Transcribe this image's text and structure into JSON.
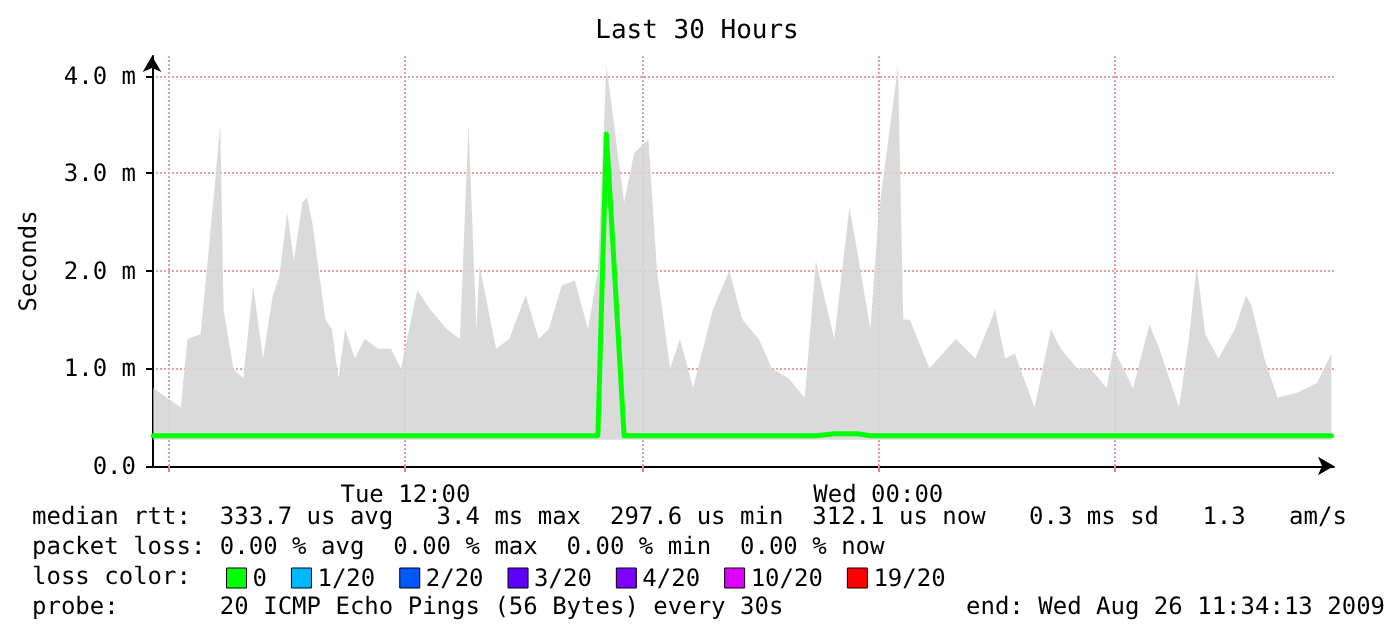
{
  "chart_data": {
    "type": "line",
    "title": "Last 30 Hours",
    "ylabel": "Seconds",
    "xlim": [
      "2009-08-25T05:34",
      "2009-08-26T11:34"
    ],
    "xticks": [
      {
        "value": "2009-08-25T06:00",
        "label": null
      },
      {
        "value": "2009-08-25T12:00",
        "label": "Tue 12:00"
      },
      {
        "value": "2009-08-25T18:00",
        "label": null
      },
      {
        "value": "2009-08-26T00:00",
        "label": "Wed 00:00"
      },
      {
        "value": "2009-08-26T06:00",
        "label": null
      }
    ],
    "ylim": [
      0,
      4.2
    ],
    "yticks": [
      {
        "value": 0,
        "label": "0.0"
      },
      {
        "value": 1,
        "label": "1.0 m"
      },
      {
        "value": 2,
        "label": "2.0 m"
      },
      {
        "value": 3,
        "label": "3.0 m"
      },
      {
        "value": 4,
        "label": "4.0 m"
      }
    ],
    "x": [
      "2009-08-25T05:36",
      "2009-08-25T06:18",
      "2009-08-25T06:28",
      "2009-08-25T06:48",
      "2009-08-25T07:03",
      "2009-08-25T07:18",
      "2009-08-25T07:23",
      "2009-08-25T07:38",
      "2009-08-25T07:53",
      "2009-08-25T08:08",
      "2009-08-25T08:23",
      "2009-08-25T08:38",
      "2009-08-25T08:48",
      "2009-08-25T09:00",
      "2009-08-25T09:10",
      "2009-08-25T09:23",
      "2009-08-25T09:30",
      "2009-08-25T09:38",
      "2009-08-25T09:58",
      "2009-08-25T10:08",
      "2009-08-25T10:18",
      "2009-08-25T10:28",
      "2009-08-25T10:43",
      "2009-08-25T10:58",
      "2009-08-25T11:18",
      "2009-08-25T11:38",
      "2009-08-25T11:53",
      "2009-08-25T12:18",
      "2009-08-25T12:38",
      "2009-08-25T13:03",
      "2009-08-25T13:23",
      "2009-08-25T13:36",
      "2009-08-25T13:48",
      "2009-08-25T13:53",
      "2009-08-25T14:18",
      "2009-08-25T14:38",
      "2009-08-25T15:03",
      "2009-08-25T15:23",
      "2009-08-25T15:38",
      "2009-08-25T15:58",
      "2009-08-25T16:18",
      "2009-08-25T16:38",
      "2009-08-25T16:53",
      "2009-08-25T17:06",
      "2009-08-25T17:33",
      "2009-08-25T17:48",
      "2009-08-25T18:10",
      "2009-08-25T18:23",
      "2009-08-25T18:43",
      "2009-08-25T18:58",
      "2009-08-25T19:18",
      "2009-08-25T19:48",
      "2009-08-25T20:13",
      "2009-08-25T20:33",
      "2009-08-25T20:58",
      "2009-08-25T21:18",
      "2009-08-25T21:43",
      "2009-08-25T22:08",
      "2009-08-25T22:25",
      "2009-08-25T22:53",
      "2009-08-25T23:16",
      "2009-08-25T23:28",
      "2009-08-25T23:48",
      "2009-08-26T00:00",
      "2009-08-26T00:30",
      "2009-08-26T00:38",
      "2009-08-26T00:48",
      "2009-08-26T01:18",
      "2009-08-26T01:58",
      "2009-08-26T02:28",
      "2009-08-26T02:58",
      "2009-08-26T03:13",
      "2009-08-26T03:28",
      "2009-08-26T03:58",
      "2009-08-26T04:23",
      "2009-08-26T04:38",
      "2009-08-26T05:03",
      "2009-08-26T05:23",
      "2009-08-26T05:48",
      "2009-08-26T05:58",
      "2009-08-26T06:28",
      "2009-08-26T06:53",
      "2009-08-26T07:08",
      "2009-08-26T07:38",
      "2009-08-26T07:53",
      "2009-08-26T08:05",
      "2009-08-26T08:18",
      "2009-08-26T08:38",
      "2009-08-26T09:03",
      "2009-08-26T09:20",
      "2009-08-26T09:28",
      "2009-08-26T09:48",
      "2009-08-26T10:08",
      "2009-08-26T10:38",
      "2009-08-26T11:08",
      "2009-08-26T11:30"
    ],
    "series": [
      {
        "name": "0",
        "color": "#00ff00",
        "values": [
          0.31,
          0.31,
          0.31,
          0.31,
          0.31,
          0.31,
          0.31,
          0.31,
          0.31,
          0.31,
          0.31,
          0.31,
          0.31,
          0.31,
          0.31,
          0.31,
          0.31,
          0.31,
          0.31,
          0.31,
          0.31,
          0.31,
          0.31,
          0.31,
          0.31,
          0.31,
          0.31,
          0.31,
          0.31,
          0.31,
          0.31,
          0.31,
          0.31,
          0.31,
          0.31,
          0.31,
          0.31,
          0.31,
          0.31,
          0.31,
          0.31,
          0.31,
          0.31,
          3.4,
          0.31,
          0.31,
          0.31,
          0.31,
          0.31,
          0.31,
          0.31,
          0.31,
          0.31,
          0.31,
          0.31,
          0.31,
          0.31,
          0.31,
          0.31,
          0.33,
          0.33,
          0.33,
          0.31,
          0.31,
          0.31,
          0.31,
          0.31,
          0.31,
          0.31,
          0.31,
          0.31,
          0.31,
          0.31,
          0.31,
          0.31,
          0.31,
          0.31,
          0.31,
          0.31,
          0.31,
          0.31,
          0.31,
          0.31,
          0.31,
          0.31,
          0.31,
          0.31,
          0.31,
          0.31,
          0.31,
          0.31,
          0.31,
          0.31,
          0.31,
          0.31,
          0.31
        ],
        "lower": [
          0.27,
          0.27,
          0.27,
          0.27,
          0.27,
          0.27,
          0.27,
          0.27,
          0.27,
          0.27,
          0.27,
          0.27,
          0.27,
          0.27,
          0.27,
          0.27,
          0.27,
          0.27,
          0.27,
          0.27,
          0.27,
          0.27,
          0.27,
          0.27,
          0.27,
          0.27,
          0.27,
          0.27,
          0.27,
          0.27,
          0.27,
          0.27,
          0.27,
          0.27,
          0.27,
          0.27,
          0.27,
          0.27,
          0.27,
          0.27,
          0.27,
          0.27,
          0.27,
          0.27,
          0.27,
          0.27,
          0.27,
          0.27,
          0.27,
          0.27,
          0.27,
          0.27,
          0.27,
          0.27,
          0.27,
          0.27,
          0.27,
          0.27,
          0.27,
          0.27,
          0.27,
          0.27,
          0.27,
          0.27,
          0.27,
          0.27,
          0.27,
          0.27,
          0.27,
          0.27,
          0.27,
          0.27,
          0.27,
          0.27,
          0.27,
          0.27,
          0.27,
          0.27,
          0.27,
          0.27,
          0.27,
          0.27,
          0.27,
          0.27,
          0.27,
          0.27,
          0.27,
          0.27,
          0.27,
          0.27,
          0.27,
          0.27,
          0.27,
          0.27,
          0.27,
          0.27
        ],
        "upper": [
          0.8,
          0.6,
          1.3,
          1.35,
          2.4,
          3.5,
          1.6,
          1.0,
          0.9,
          1.85,
          1.1,
          1.75,
          1.95,
          2.6,
          2.1,
          2.7,
          2.75,
          2.5,
          1.5,
          1.4,
          0.9,
          1.4,
          1.1,
          1.3,
          1.2,
          1.2,
          1.0,
          1.8,
          1.6,
          1.4,
          1.3,
          3.5,
          1.4,
          2.05,
          1.2,
          1.3,
          1.75,
          1.3,
          1.4,
          1.85,
          1.9,
          1.4,
          2.0,
          4.1,
          2.7,
          3.2,
          3.35,
          2.0,
          1.0,
          1.3,
          0.8,
          1.6,
          2.0,
          1.5,
          1.3,
          1.0,
          0.9,
          0.7,
          2.1,
          1.3,
          2.65,
          2.2,
          1.4,
          2.55,
          4.1,
          1.5,
          1.5,
          1.0,
          1.3,
          1.1,
          1.6,
          1.1,
          1.15,
          0.6,
          1.4,
          1.2,
          1.0,
          1.0,
          0.8,
          1.2,
          0.8,
          1.45,
          1.2,
          0.6,
          1.3,
          2.05,
          1.35,
          1.1,
          1.4,
          1.75,
          1.65,
          1.1,
          0.7,
          0.75,
          0.85,
          1.15
        ]
      },
      {
        "name": "1/20",
        "color": "#00b8ff",
        "values": [
          null,
          null,
          null,
          null,
          null,
          null,
          null,
          null,
          null,
          null,
          null,
          null,
          null,
          null,
          null,
          null,
          null,
          null,
          null,
          null,
          null,
          null,
          null,
          null,
          null,
          null,
          null,
          null,
          null,
          null,
          null,
          null,
          null,
          null,
          null,
          null,
          null,
          null,
          null,
          null,
          null,
          null,
          null,
          null,
          null,
          null,
          null,
          null,
          null,
          null,
          null,
          null,
          null,
          null,
          null,
          null,
          null,
          null,
          null,
          null,
          null,
          null,
          null,
          null,
          null,
          null,
          null,
          null,
          null,
          null,
          null,
          null,
          null,
          null,
          null,
          null,
          null,
          null,
          null,
          null,
          null,
          null,
          null,
          null,
          null,
          null,
          null,
          null,
          null,
          null,
          null,
          null,
          null,
          null,
          null,
          null
        ]
      },
      {
        "name": "2/20",
        "color": "#0059ff",
        "values": [
          null,
          null,
          null,
          null,
          null,
          null,
          null,
          null,
          null,
          null,
          null,
          null,
          null,
          null,
          null,
          null,
          null,
          null,
          null,
          null,
          null,
          null,
          null,
          null,
          null,
          null,
          null,
          null,
          null,
          null,
          null,
          null,
          null,
          null,
          null,
          null,
          null,
          null,
          null,
          null,
          null,
          null,
          null,
          null,
          null,
          null,
          null,
          null,
          null,
          null,
          null,
          null,
          null,
          null,
          null,
          null,
          null,
          null,
          null,
          null,
          null,
          null,
          null,
          null,
          null,
          null,
          null,
          null,
          null,
          null,
          null,
          null,
          null,
          null,
          null,
          null,
          null,
          null,
          null,
          null,
          null,
          null,
          null,
          null,
          null,
          null,
          null,
          null,
          null,
          null,
          null,
          null,
          null,
          null,
          null,
          null
        ]
      },
      {
        "name": "3/20",
        "color": "#5e00ff",
        "values": [
          null,
          null,
          null,
          null,
          null,
          null,
          null,
          null,
          null,
          null,
          null,
          null,
          null,
          null,
          null,
          null,
          null,
          null,
          null,
          null,
          null,
          null,
          null,
          null,
          null,
          null,
          null,
          null,
          null,
          null,
          null,
          null,
          null,
          null,
          null,
          null,
          null,
          null,
          null,
          null,
          null,
          null,
          null,
          null,
          null,
          null,
          null,
          null,
          null,
          null,
          null,
          null,
          null,
          null,
          null,
          null,
          null,
          null,
          null,
          null,
          null,
          null,
          null,
          null,
          null,
          null,
          null,
          null,
          null,
          null,
          null,
          null,
          null,
          null,
          null,
          null,
          null,
          null,
          null,
          null,
          null,
          null,
          null,
          null,
          null,
          null,
          null,
          null,
          null,
          null,
          null,
          null,
          null,
          null,
          null,
          null
        ]
      },
      {
        "name": "4/20",
        "color": "#7e00ff",
        "values": [
          null,
          null,
          null,
          null,
          null,
          null,
          null,
          null,
          null,
          null,
          null,
          null,
          null,
          null,
          null,
          null,
          null,
          null,
          null,
          null,
          null,
          null,
          null,
          null,
          null,
          null,
          null,
          null,
          null,
          null,
          null,
          null,
          null,
          null,
          null,
          null,
          null,
          null,
          null,
          null,
          null,
          null,
          null,
          null,
          null,
          null,
          null,
          null,
          null,
          null,
          null,
          null,
          null,
          null,
          null,
          null,
          null,
          null,
          null,
          null,
          null,
          null,
          null,
          null,
          null,
          null,
          null,
          null,
          null,
          null,
          null,
          null,
          null,
          null,
          null,
          null,
          null,
          null,
          null,
          null,
          null,
          null,
          null,
          null,
          null,
          null,
          null,
          null,
          null,
          null,
          null,
          null,
          null,
          null,
          null,
          null
        ]
      },
      {
        "name": "10/20",
        "color": "#dd00ff",
        "values": [
          null,
          null,
          null,
          null,
          null,
          null,
          null,
          null,
          null,
          null,
          null,
          null,
          null,
          null,
          null,
          null,
          null,
          null,
          null,
          null,
          null,
          null,
          null,
          null,
          null,
          null,
          null,
          null,
          null,
          null,
          null,
          null,
          null,
          null,
          null,
          null,
          null,
          null,
          null,
          null,
          null,
          null,
          null,
          null,
          null,
          null,
          null,
          null,
          null,
          null,
          null,
          null,
          null,
          null,
          null,
          null,
          null,
          null,
          null,
          null,
          null,
          null,
          null,
          null,
          null,
          null,
          null,
          null,
          null,
          null,
          null,
          null,
          null,
          null,
          null,
          null,
          null,
          null,
          null,
          null,
          null,
          null,
          null,
          null,
          null,
          null,
          null,
          null,
          null,
          null,
          null,
          null,
          null,
          null,
          null,
          null
        ]
      },
      {
        "name": "19/20",
        "color": "#ff0000",
        "values": [
          null,
          null,
          null,
          null,
          null,
          null,
          null,
          null,
          null,
          null,
          null,
          null,
          null,
          null,
          null,
          null,
          null,
          null,
          null,
          null,
          null,
          null,
          null,
          null,
          null,
          null,
          null,
          null,
          null,
          null,
          null,
          null,
          null,
          null,
          null,
          null,
          null,
          null,
          null,
          null,
          null,
          null,
          null,
          null,
          null,
          null,
          null,
          null,
          null,
          null,
          null,
          null,
          null,
          null,
          null,
          null,
          null,
          null,
          null,
          null,
          null,
          null,
          null,
          null,
          null,
          null,
          null,
          null,
          null,
          null,
          null,
          null,
          null,
          null,
          null,
          null,
          null,
          null,
          null,
          null,
          null,
          null,
          null,
          null,
          null,
          null,
          null,
          null,
          null,
          null,
          null,
          null,
          null,
          null,
          null,
          null
        ]
      }
    ],
    "grid": true,
    "legend": "bottom",
    "marker": "none",
    "line_style": "solid",
    "annotations": [
      "median rtt:  333.7 us avg   3.4 ms max  297.6 us min  312.1 us now   0.3 ms sd   1.3   am/s",
      "packet loss: 0.00 % avg  0.00 % max  0.00 % min  0.00 % now",
      "loss color:",
      "probe:       20 ICMP Echo Pings (56 Bytes) every 30s",
      "end: Wed Aug 26 11:34:13 2009"
    ]
  }
}
